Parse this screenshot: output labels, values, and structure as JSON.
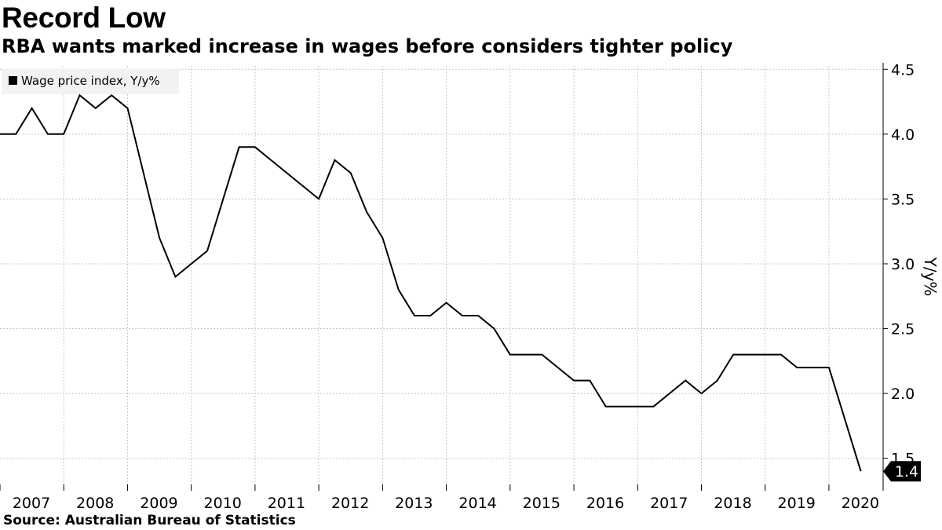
{
  "title": "Record Low",
  "subtitle": "RBA wants marked increase in wages before considers tighter policy",
  "source": "Source: Australian Bureau of Statistics",
  "chart_data": {
    "type": "line",
    "title": "Record Low",
    "subtitle": "RBA wants marked increase in wages before considers tighter policy",
    "xlabel": "",
    "ylabel": "Y/y%",
    "y_axis_side": "right",
    "ylim": [
      1.25,
      4.55
    ],
    "yticks": [
      1.5,
      2.0,
      2.5,
      3.0,
      3.5,
      4.0,
      4.5
    ],
    "ytick_labels": [
      "1.5",
      "2.0",
      "2.5",
      "3.0",
      "3.5",
      "4.0",
      "4.5"
    ],
    "xlim": [
      2007.0,
      2020.85
    ],
    "xticks": [
      2007,
      2008,
      2009,
      2010,
      2011,
      2012,
      2013,
      2014,
      2015,
      2016,
      2017,
      2018,
      2019,
      2020
    ],
    "xtick_labels": [
      "2007",
      "2008",
      "2009",
      "2010",
      "2011",
      "2012",
      "2013",
      "2014",
      "2015",
      "2016",
      "2017",
      "2018",
      "2019",
      "2020"
    ],
    "grid": true,
    "legend": {
      "position": "top-left",
      "entries": [
        "Wage price index, Y/y%"
      ]
    },
    "line_color": "#000000",
    "last_value_label": "1.4",
    "series": [
      {
        "name": "Wage price index, Y/y%",
        "x": [
          2007.0,
          2007.25,
          2007.5,
          2007.75,
          2008.0,
          2008.25,
          2008.5,
          2008.75,
          2009.0,
          2009.25,
          2009.5,
          2009.75,
          2010.0,
          2010.25,
          2010.5,
          2010.75,
          2011.0,
          2011.25,
          2011.5,
          2011.75,
          2012.0,
          2012.25,
          2012.5,
          2012.75,
          2013.0,
          2013.25,
          2013.5,
          2013.75,
          2014.0,
          2014.25,
          2014.5,
          2014.75,
          2015.0,
          2015.25,
          2015.5,
          2015.75,
          2016.0,
          2016.25,
          2016.5,
          2016.75,
          2017.0,
          2017.25,
          2017.5,
          2017.75,
          2018.0,
          2018.25,
          2018.5,
          2018.75,
          2019.0,
          2019.25,
          2019.5,
          2019.75,
          2020.0,
          2020.25,
          2020.5
        ],
        "values": [
          4.0,
          4.0,
          4.2,
          4.0,
          4.0,
          4.3,
          4.2,
          4.3,
          4.2,
          3.7,
          3.2,
          2.9,
          3.0,
          3.1,
          3.5,
          3.9,
          3.9,
          3.8,
          3.7,
          3.6,
          3.5,
          3.8,
          3.7,
          3.4,
          3.2,
          2.8,
          2.6,
          2.6,
          2.7,
          2.6,
          2.6,
          2.5,
          2.3,
          2.3,
          2.3,
          2.2,
          2.1,
          2.1,
          1.9,
          1.9,
          1.9,
          1.9,
          2.0,
          2.1,
          2.0,
          2.1,
          2.3,
          2.3,
          2.3,
          2.3,
          2.2,
          2.2,
          2.2,
          1.8,
          1.4
        ]
      }
    ]
  }
}
